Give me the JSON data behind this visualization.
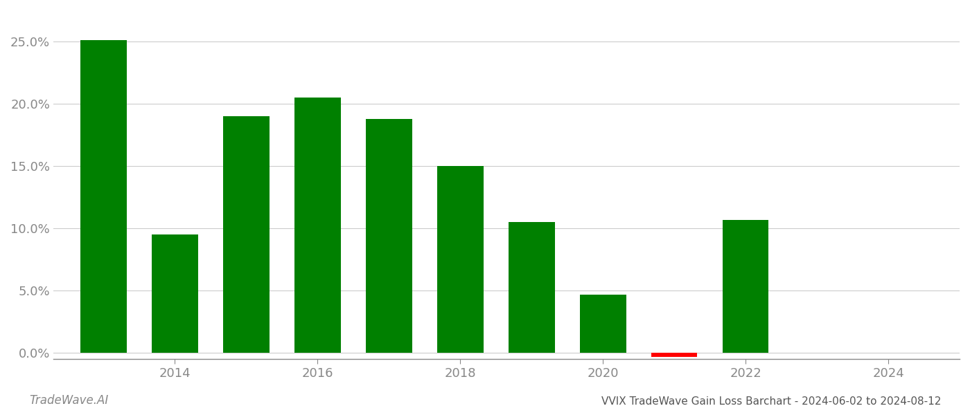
{
  "years": [
    2013,
    2014,
    2015,
    2016,
    2017,
    2018,
    2019,
    2020,
    2021,
    2022,
    2023
  ],
  "values": [
    0.251,
    0.095,
    0.19,
    0.205,
    0.188,
    0.15,
    0.105,
    0.047,
    -0.003,
    0.107,
    0.0
  ],
  "bar_width": 0.65,
  "positive_color": "#008000",
  "negative_color": "#ff0000",
  "title": "VVIX TradeWave Gain Loss Barchart - 2024-06-02 to 2024-08-12",
  "watermark": "TradeWave.AI",
  "ylim_min": -0.005,
  "ylim_max": 0.275,
  "yticks": [
    0.0,
    0.05,
    0.1,
    0.15,
    0.2,
    0.25
  ],
  "xlim_min": 2012.3,
  "xlim_max": 2025.0,
  "xtick_positions": [
    2014,
    2016,
    2018,
    2020,
    2022,
    2024
  ],
  "background_color": "#ffffff",
  "grid_color": "#cccccc",
  "tick_label_color": "#888888",
  "axis_color": "#888888",
  "title_color": "#555555",
  "watermark_color": "#888888",
  "title_fontsize": 11,
  "tick_fontsize": 13,
  "watermark_fontsize": 12
}
